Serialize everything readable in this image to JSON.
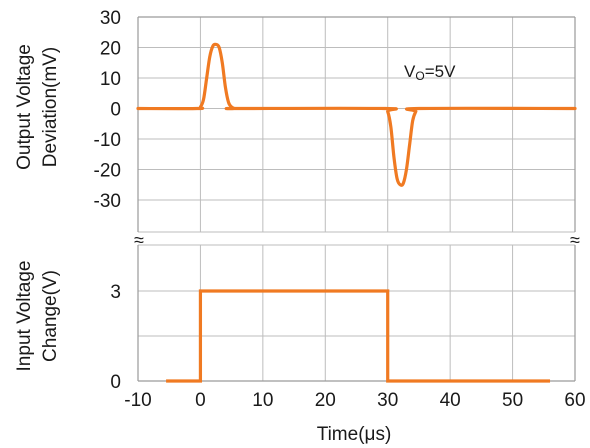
{
  "chart_data": [
    {
      "type": "line",
      "ylabel_lines": [
        "Output Voltage",
        "Deviation(mV)"
      ],
      "xlim": [
        -10,
        60
      ],
      "ylim": [
        -30,
        30
      ],
      "yticks": [
        "30",
        "20",
        "10",
        "0",
        "-10",
        "-20",
        "-30"
      ],
      "ytick_values": [
        30,
        20,
        10,
        0,
        -10,
        -20,
        -30
      ],
      "annotation": {
        "main": "V",
        "sub": "O",
        "rest": "=5V"
      },
      "grid": true,
      "series": [
        {
          "color": "#f07a22",
          "x": [
            -10,
            -0.5,
            0,
            0.5,
            1,
            1.5,
            2,
            2.5,
            3,
            3.5,
            4,
            4.5,
            5,
            5.5,
            6,
            29.5,
            30,
            30.5,
            31,
            31.5,
            32,
            32.5,
            33,
            33.5,
            34,
            34.5,
            35,
            60
          ],
          "y": [
            0,
            0,
            0.5,
            3,
            10,
            17,
            20.5,
            21,
            20,
            15,
            7,
            2,
            0.5,
            0,
            0,
            0,
            -1,
            -6,
            -16,
            -23,
            -25,
            -24.5,
            -20,
            -12,
            -4,
            -1,
            0,
            0
          ]
        }
      ]
    },
    {
      "type": "line",
      "ylabel_lines": [
        "Input Voltage",
        "Change(V)"
      ],
      "xlabel": "Time(μs)",
      "xlim": [
        -10,
        60
      ],
      "ylim": [
        0,
        4.3
      ],
      "xticks": [
        "-10",
        "0",
        "10",
        "20",
        "30",
        "40",
        "50",
        "60"
      ],
      "xtick_values": [
        -10,
        0,
        10,
        20,
        30,
        40,
        50,
        60
      ],
      "yticks": [
        "3",
        "0"
      ],
      "ytick_values": [
        3,
        0
      ],
      "grid": true,
      "series": [
        {
          "color": "#f07a22",
          "x": [
            -5.5,
            0,
            0,
            30,
            30,
            56
          ],
          "y": [
            0,
            0,
            3,
            3,
            0,
            0
          ]
        }
      ]
    }
  ],
  "axis_break_symbol": "≈"
}
